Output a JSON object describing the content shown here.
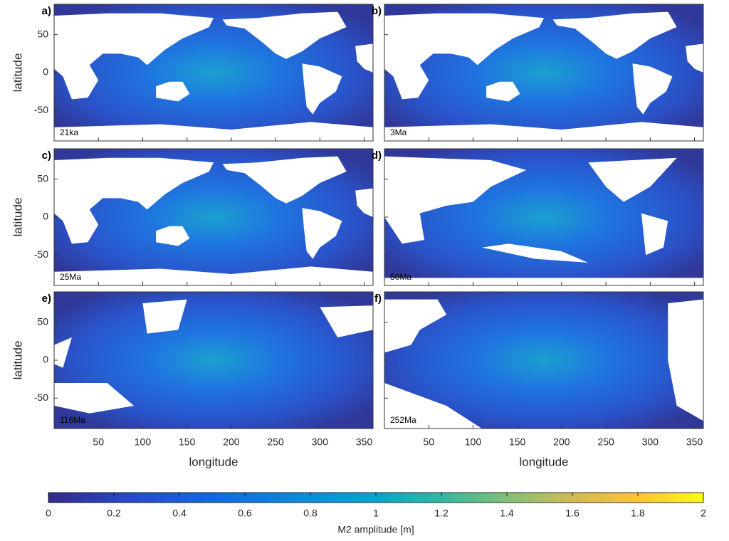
{
  "panels": [
    {
      "letter": "a)",
      "age": "21ka"
    },
    {
      "letter": "b)",
      "age": "3Ma"
    },
    {
      "letter": "c)",
      "age": "25Ma"
    },
    {
      "letter": "d)",
      "age": "50Ma"
    },
    {
      "letter": "e)",
      "age": "116Ma"
    },
    {
      "letter": "f)",
      "age": "252Ma"
    }
  ],
  "xlabel": "longitude",
  "ylabel": "latitude",
  "xlim": [
    0,
    360
  ],
  "xticks": [
    50,
    100,
    150,
    200,
    250,
    300,
    350
  ],
  "ylim": [
    -90,
    90
  ],
  "yticks": [
    50,
    0,
    -50
  ],
  "colorbar": {
    "label": "M2 amplitude  [m]",
    "lim": [
      0,
      2
    ],
    "ticks": [
      0,
      0.2,
      0.4,
      0.6,
      0.8,
      1,
      1.2,
      1.4,
      1.6,
      1.8,
      2
    ]
  }
}
